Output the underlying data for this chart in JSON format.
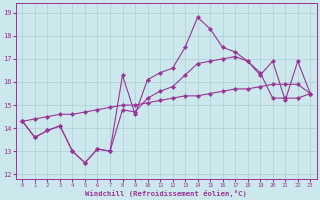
{
  "xlabel": "Windchill (Refroidissement éolien,°C)",
  "xlim": [
    -0.5,
    23.5
  ],
  "ylim": [
    11.8,
    19.4
  ],
  "yticks": [
    12,
    13,
    14,
    15,
    16,
    17,
    18,
    19
  ],
  "xticks": [
    0,
    1,
    2,
    3,
    4,
    5,
    6,
    7,
    8,
    9,
    10,
    11,
    12,
    13,
    14,
    15,
    16,
    17,
    18,
    19,
    20,
    21,
    22,
    23
  ],
  "background_color": "#cce8ec",
  "grid_color": "#aad0d4",
  "line_color": "#993399",
  "line1_y": [
    14.3,
    13.6,
    13.9,
    14.1,
    13.0,
    12.5,
    13.1,
    13.0,
    16.3,
    14.6,
    16.1,
    16.4,
    16.6,
    17.5,
    18.8,
    18.3,
    17.5,
    17.3,
    16.9,
    16.3,
    16.9,
    15.2,
    16.9,
    15.5
  ],
  "line2_y": [
    14.3,
    13.6,
    13.9,
    14.1,
    13.0,
    12.5,
    13.1,
    13.0,
    14.8,
    14.7,
    15.3,
    15.6,
    15.8,
    16.3,
    16.8,
    16.9,
    17.0,
    17.1,
    16.9,
    16.4,
    15.3,
    15.3,
    15.3,
    15.5
  ],
  "line3_y": [
    14.3,
    14.4,
    14.5,
    14.6,
    14.6,
    14.7,
    14.8,
    14.9,
    15.0,
    15.0,
    15.1,
    15.2,
    15.3,
    15.4,
    15.4,
    15.5,
    15.6,
    15.7,
    15.7,
    15.8,
    15.9,
    15.9,
    15.9,
    15.5
  ]
}
